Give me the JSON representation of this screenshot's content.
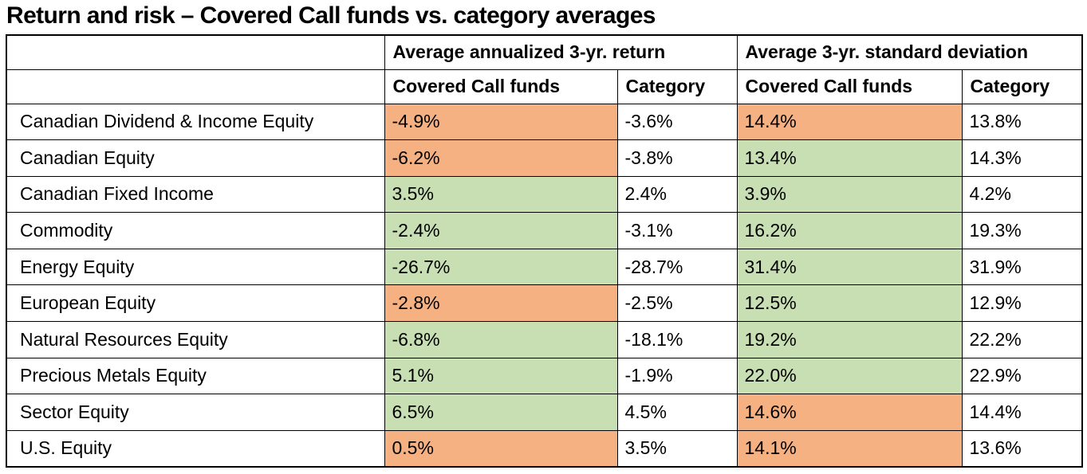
{
  "title": "Return and risk – Covered Call funds vs. category averages",
  "chart_data": {
    "type": "table",
    "title": "Return and risk – Covered Call funds vs. category averages",
    "group_headers": [
      "Average annualized 3-yr. return",
      "Average 3-yr. standard deviation"
    ],
    "sub_headers": [
      "Covered Call funds",
      "Category",
      "Covered Call funds",
      "Category"
    ],
    "highlight_colors": {
      "worse": "#F6B183",
      "better": "#C8DFB3"
    },
    "rows": [
      {
        "category": "Canadian Dividend & Income Equity",
        "cc_return": "-4.9%",
        "cat_return": "-3.6%",
        "cc_stddev": "14.4%",
        "cat_stddev": "13.8%",
        "cc_return_highlight": "worse",
        "cc_stddev_highlight": "worse"
      },
      {
        "category": "Canadian Equity",
        "cc_return": "-6.2%",
        "cat_return": "-3.8%",
        "cc_stddev": "13.4%",
        "cat_stddev": "14.3%",
        "cc_return_highlight": "worse",
        "cc_stddev_highlight": "better"
      },
      {
        "category": "Canadian Fixed Income",
        "cc_return": "3.5%",
        "cat_return": "2.4%",
        "cc_stddev": "3.9%",
        "cat_stddev": "4.2%",
        "cc_return_highlight": "better",
        "cc_stddev_highlight": "better"
      },
      {
        "category": "Commodity",
        "cc_return": "-2.4%",
        "cat_return": "-3.1%",
        "cc_stddev": "16.2%",
        "cat_stddev": "19.3%",
        "cc_return_highlight": "better",
        "cc_stddev_highlight": "better"
      },
      {
        "category": "Energy Equity",
        "cc_return": "-26.7%",
        "cat_return": "-28.7%",
        "cc_stddev": "31.4%",
        "cat_stddev": "31.9%",
        "cc_return_highlight": "better",
        "cc_stddev_highlight": "better"
      },
      {
        "category": "European Equity",
        "cc_return": "-2.8%",
        "cat_return": "-2.5%",
        "cc_stddev": "12.5%",
        "cat_stddev": "12.9%",
        "cc_return_highlight": "worse",
        "cc_stddev_highlight": "better"
      },
      {
        "category": "Natural Resources Equity",
        "cc_return": "-6.8%",
        "cat_return": "-18.1%",
        "cc_stddev": "19.2%",
        "cat_stddev": "22.2%",
        "cc_return_highlight": "better",
        "cc_stddev_highlight": "better"
      },
      {
        "category": "Precious Metals Equity",
        "cc_return": "5.1%",
        "cat_return": "-1.9%",
        "cc_stddev": "22.0%",
        "cat_stddev": "22.9%",
        "cc_return_highlight": "better",
        "cc_stddev_highlight": "better"
      },
      {
        "category": "Sector Equity",
        "cc_return": "6.5%",
        "cat_return": "4.5%",
        "cc_stddev": "14.6%",
        "cat_stddev": "14.4%",
        "cc_return_highlight": "better",
        "cc_stddev_highlight": "worse"
      },
      {
        "category": "U.S. Equity",
        "cc_return": "0.5%",
        "cat_return": "3.5%",
        "cc_stddev": "14.1%",
        "cat_stddev": "13.6%",
        "cc_return_highlight": "worse",
        "cc_stddev_highlight": "worse"
      }
    ]
  }
}
